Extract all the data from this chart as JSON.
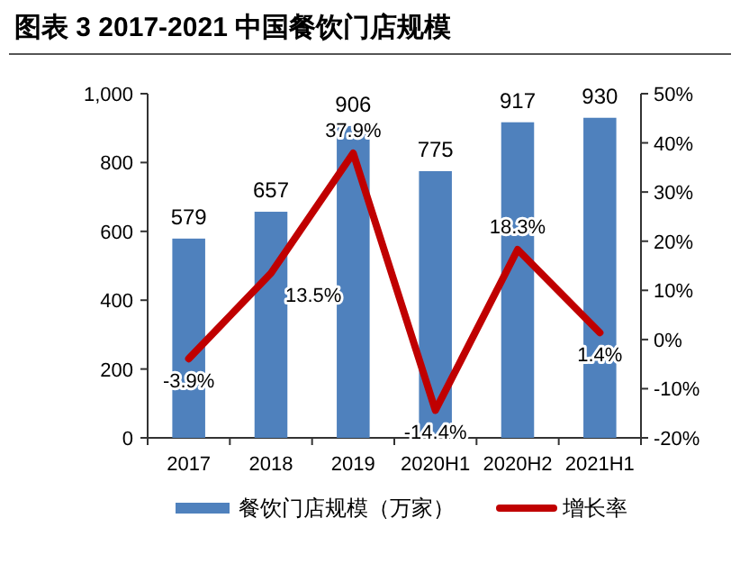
{
  "chart_data": {
    "type": "bar",
    "title": "图表 3 2017-2021 中国餐饮门店规模",
    "categories": [
      "2017",
      "2018",
      "2019",
      "2020H1",
      "2020H2",
      "2021H1"
    ],
    "series": [
      {
        "name": "餐饮门店规模（万家）",
        "color": "#4f81bd",
        "values": [
          579,
          657,
          906,
          775,
          917,
          930
        ],
        "value_labels": [
          "579",
          "657",
          "906",
          "775",
          "917",
          "930"
        ]
      },
      {
        "name": "增长率",
        "type": "line",
        "axis": "y2",
        "color": "#c00000",
        "values": [
          -3.9,
          13.5,
          37.9,
          -14.4,
          18.3,
          1.4
        ],
        "value_labels": [
          "-3.9%",
          "13.5%",
          "37.9%",
          "-14.4%",
          "18.3%",
          "1.4%"
        ]
      }
    ],
    "ylim": [
      0,
      1000
    ],
    "yticks": [
      0,
      200,
      400,
      600,
      800,
      {
        "value": 1000,
        "label": "1,000"
      }
    ],
    "y2lim": [
      -20,
      50
    ],
    "y2ticks": [
      {
        "value": -20,
        "label": "-20%"
      },
      {
        "value": -10,
        "label": "-10%"
      },
      {
        "value": 0,
        "label": "0%"
      },
      {
        "value": 10,
        "label": "10%"
      },
      {
        "value": 20,
        "label": "20%"
      },
      {
        "value": 30,
        "label": "30%"
      },
      {
        "value": 40,
        "label": "40%"
      },
      {
        "value": 50,
        "label": "50%"
      }
    ],
    "legend": "bottom"
  }
}
